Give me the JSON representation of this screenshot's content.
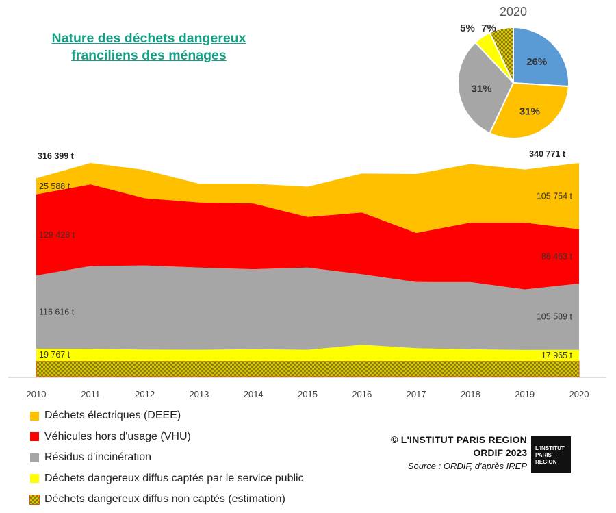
{
  "title_lines": [
    "Nature des déchets dangereux ",
    "franciliens des ménages"
  ],
  "chart_data": [
    {
      "type": "area",
      "stacked": true,
      "x": [
        2010,
        2011,
        2012,
        2013,
        2014,
        2015,
        2016,
        2017,
        2018,
        2019,
        2020
      ],
      "ylim": [
        0,
        340771
      ],
      "grid": false,
      "legend_placement": "bottom-left",
      "series": [
        {
          "name": "Déchets dangereux diffus non captés (estimation)",
          "color": "#c9b400",
          "values": [
            25000,
            25000,
            25000,
            25000,
            25000,
            25000,
            25000,
            25000,
            25000,
            25000,
            25000
          ]
        },
        {
          "name": "Déchets dangereux diffus captés par le service public",
          "color": "#ffff00",
          "values": [
            19767,
            19500,
            18200,
            18000,
            19000,
            18000,
            26000,
            20500,
            18800,
            17700,
            17965
          ]
        },
        {
          "name": "Résidus d'incinération",
          "color": "#a6a6a6",
          "values": [
            116616,
            131900,
            134200,
            131000,
            127400,
            130900,
            112400,
            105400,
            107000,
            96400,
            105589
          ]
        },
        {
          "name": "Véhicules hors d'usage (VHU)",
          "color": "#ff0000",
          "values": [
            129428,
            130400,
            107200,
            103900,
            104800,
            80800,
            98500,
            78500,
            94900,
            106600,
            86463
          ]
        },
        {
          "name": "Déchets électriques (DEEE)",
          "color": "#ffc000",
          "values": [
            25588,
            34000,
            45000,
            30000,
            31700,
            48400,
            62000,
            93900,
            93400,
            84600,
            105754
          ]
        }
      ],
      "totals": [
        {
          "year": 2010,
          "label": "316 399 t"
        },
        {
          "year": 2020,
          "label": "340 771 t"
        }
      ],
      "data_labels": [
        {
          "year": 2010,
          "series": "DEEE",
          "label": "25 588 t"
        },
        {
          "year": 2010,
          "series": "VHU",
          "label": "129 428 t"
        },
        {
          "year": 2010,
          "series": "Incinération",
          "label": "116 616 t"
        },
        {
          "year": 2010,
          "series": "Captés",
          "label": "19 767 t"
        },
        {
          "year": 2020,
          "series": "DEEE",
          "label": "105 754 t"
        },
        {
          "year": 2020,
          "series": "VHU",
          "label": "86 463 t"
        },
        {
          "year": 2020,
          "series": "Incinération",
          "label": "105 589 t"
        },
        {
          "year": 2020,
          "series": "Captés",
          "label": "17 965 t"
        }
      ]
    },
    {
      "type": "pie",
      "title": "2020",
      "slices": [
        {
          "label": "26%",
          "value": 26,
          "color": "#5b9bd5"
        },
        {
          "label": "31%",
          "value": 31,
          "color": "#ffc000"
        },
        {
          "label": "31%",
          "value": 31,
          "color": "#a6a6a6"
        },
        {
          "label": "5%",
          "value": 5,
          "color": "#ffff00"
        },
        {
          "label": "7%",
          "value": 7,
          "color": "#c9b400",
          "pattern": "checker"
        }
      ]
    }
  ],
  "legend": [
    {
      "label": "Déchets électriques (DEEE)",
      "color": "#ffc000"
    },
    {
      "label": "Véhicules hors d'usage (VHU)",
      "color": "#ff0000"
    },
    {
      "label": "Résidus d'incinération",
      "color": "#a6a6a6"
    },
    {
      "label": "Déchets dangereux diffus captés par le service public",
      "color": "#ffff00"
    },
    {
      "label": "Déchets dangereux diffus non captés (estimation)",
      "color": "#c9b400",
      "pattern": "checker"
    }
  ],
  "credit": {
    "line1": "© L'INSTITUT PARIS REGION",
    "line2": "ORDIF 2023",
    "line3": "Source : ORDIF, d'après IREP"
  },
  "logo_lines": [
    "L'INSTITUT",
    "PARIS",
    "REGION"
  ]
}
